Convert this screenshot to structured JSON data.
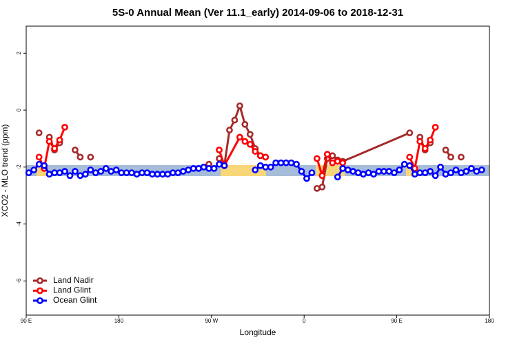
{
  "chart_data": {
    "type": "line",
    "title": "5S-0 Annual Mean (Ver 11.1_early)   2014-09-06 to 2018-12-31",
    "xlabel": "Longitude",
    "ylabel": "XCO2 - MLO trend (ppm)",
    "xlim": [
      90,
      540
    ],
    "ylim": [
      -7.2,
      2.95
    ],
    "xticks": [
      {
        "value": 90,
        "label": "90 E"
      },
      {
        "value": 180,
        "label": "180"
      },
      {
        "value": 270,
        "label": "90 W"
      },
      {
        "value": 360,
        "label": "0"
      },
      {
        "value": 450,
        "label": "90 E"
      },
      {
        "value": 540,
        "label": "180"
      }
    ],
    "yticks": [
      2,
      0,
      -2,
      -4,
      -6
    ],
    "legend": "bottom-left",
    "series": [
      {
        "name": "Land Nadir",
        "color": "#a52a2a",
        "x": [
          102.5,
          107.5,
          112.5,
          117.5,
          122.5,
          127.5,
          137.5,
          142.5,
          147.5,
          152.5,
          262.5,
          267.5,
          272.5,
          277.5,
          282.5,
          287.5,
          292.5,
          297.5,
          302.5,
          307.5,
          312.5,
          317.5,
          322.5,
          367.5,
          372.5,
          377.5,
          382.5,
          387.5,
          392.5,
          397.5,
          462.5,
          467.5,
          472.5,
          477.5,
          482.5,
          487.5,
          497.5,
          502.5,
          507.5,
          512.5
        ],
        "values": [
          -0.8,
          null,
          -0.95,
          -1.4,
          -1.15,
          null,
          -1.4,
          -1.65,
          null,
          -1.65,
          null,
          -1.9,
          null,
          -1.7,
          -1.95,
          -0.7,
          -0.35,
          0.15,
          -0.5,
          -0.85,
          -1.35,
          -1.6,
          -1.65,
          null,
          -2.75,
          -2.7,
          -1.7,
          -1.6,
          -1.75,
          -1.8,
          -0.8,
          null,
          -0.95,
          -1.4,
          -1.15,
          null,
          -1.4,
          -1.65,
          null,
          -1.65
        ]
      },
      {
        "name": "Land Glint",
        "color": "#ff0000",
        "x": [
          102.5,
          107.5,
          112.5,
          117.5,
          122.5,
          127.5,
          272.5,
          277.5,
          282.5,
          297.5,
          302.5,
          307.5,
          312.5,
          317.5,
          322.5,
          367.5,
          372.5,
          377.5,
          382.5,
          387.5,
          392.5,
          397.5,
          457.5,
          462.5,
          467.5,
          472.5,
          477.5,
          482.5,
          487.5
        ],
        "values": [
          -1.65,
          -2.05,
          -1.1,
          -1.35,
          -1.05,
          -0.6,
          null,
          -1.4,
          -1.95,
          -0.95,
          -1.1,
          -1.2,
          -1.45,
          -1.6,
          -1.65,
          null,
          -1.7,
          -2.3,
          -1.55,
          -1.85,
          -1.8,
          -1.85,
          null,
          -1.65,
          -2.05,
          -1.1,
          -1.35,
          -1.05,
          -0.6
        ]
      },
      {
        "name": "Ocean Glint",
        "color": "#0000ff",
        "x": [
          92.5,
          97.5,
          102.5,
          107.5,
          112.5,
          117.5,
          122.5,
          127.5,
          132.5,
          137.5,
          142.5,
          147.5,
          152.5,
          157.5,
          162.5,
          167.5,
          172.5,
          177.5,
          182.5,
          187.5,
          192.5,
          197.5,
          202.5,
          207.5,
          212.5,
          217.5,
          222.5,
          227.5,
          232.5,
          237.5,
          242.5,
          247.5,
          252.5,
          257.5,
          262.5,
          267.5,
          272.5,
          277.5,
          282.5,
          297.5,
          312.5,
          317.5,
          322.5,
          327.5,
          332.5,
          337.5,
          342.5,
          347.5,
          352.5,
          357.5,
          362.5,
          367.5,
          380,
          392.5,
          397.5,
          402.5,
          407.5,
          412.5,
          417.5,
          422.5,
          427.5,
          432.5,
          437.5,
          442.5,
          447.5,
          452.5,
          457.5,
          462.5,
          467.5,
          472.5,
          477.5,
          482.5,
          487.5,
          492.5,
          497.5,
          502.5,
          507.5,
          512.5,
          517.5,
          522.5,
          527.5,
          532.5
        ],
        "values": [
          -2.2,
          -2.1,
          -1.9,
          -1.95,
          -2.25,
          -2.2,
          -2.2,
          -2.15,
          -2.3,
          -2.15,
          -2.3,
          -2.25,
          -2.1,
          -2.2,
          -2.15,
          -2.05,
          -2.15,
          -2.1,
          -2.2,
          -2.2,
          -2.2,
          -2.25,
          -2.2,
          -2.2,
          -2.25,
          -2.25,
          -2.25,
          -2.25,
          -2.2,
          -2.2,
          -2.15,
          -2.1,
          -2.05,
          -2.05,
          -2.0,
          -2.05,
          -2.05,
          -1.9,
          -1.95,
          null,
          -2.1,
          -1.95,
          -2.0,
          -2.0,
          -1.85,
          -1.85,
          -1.85,
          -1.85,
          -1.9,
          -2.15,
          -2.4,
          -2.2,
          null,
          -2.35,
          -2.05,
          -2.1,
          -2.15,
          -2.2,
          -2.25,
          -2.2,
          -2.25,
          -2.15,
          -2.15,
          -2.15,
          -2.2,
          -2.1,
          -1.9,
          -1.95,
          -2.25,
          -2.2,
          -2.2,
          -2.15,
          -2.3,
          -2.0,
          -2.25,
          -2.2,
          -2.1,
          -2.2,
          -2.15,
          -2.05,
          -2.15,
          -2.1
        ]
      }
    ]
  }
}
